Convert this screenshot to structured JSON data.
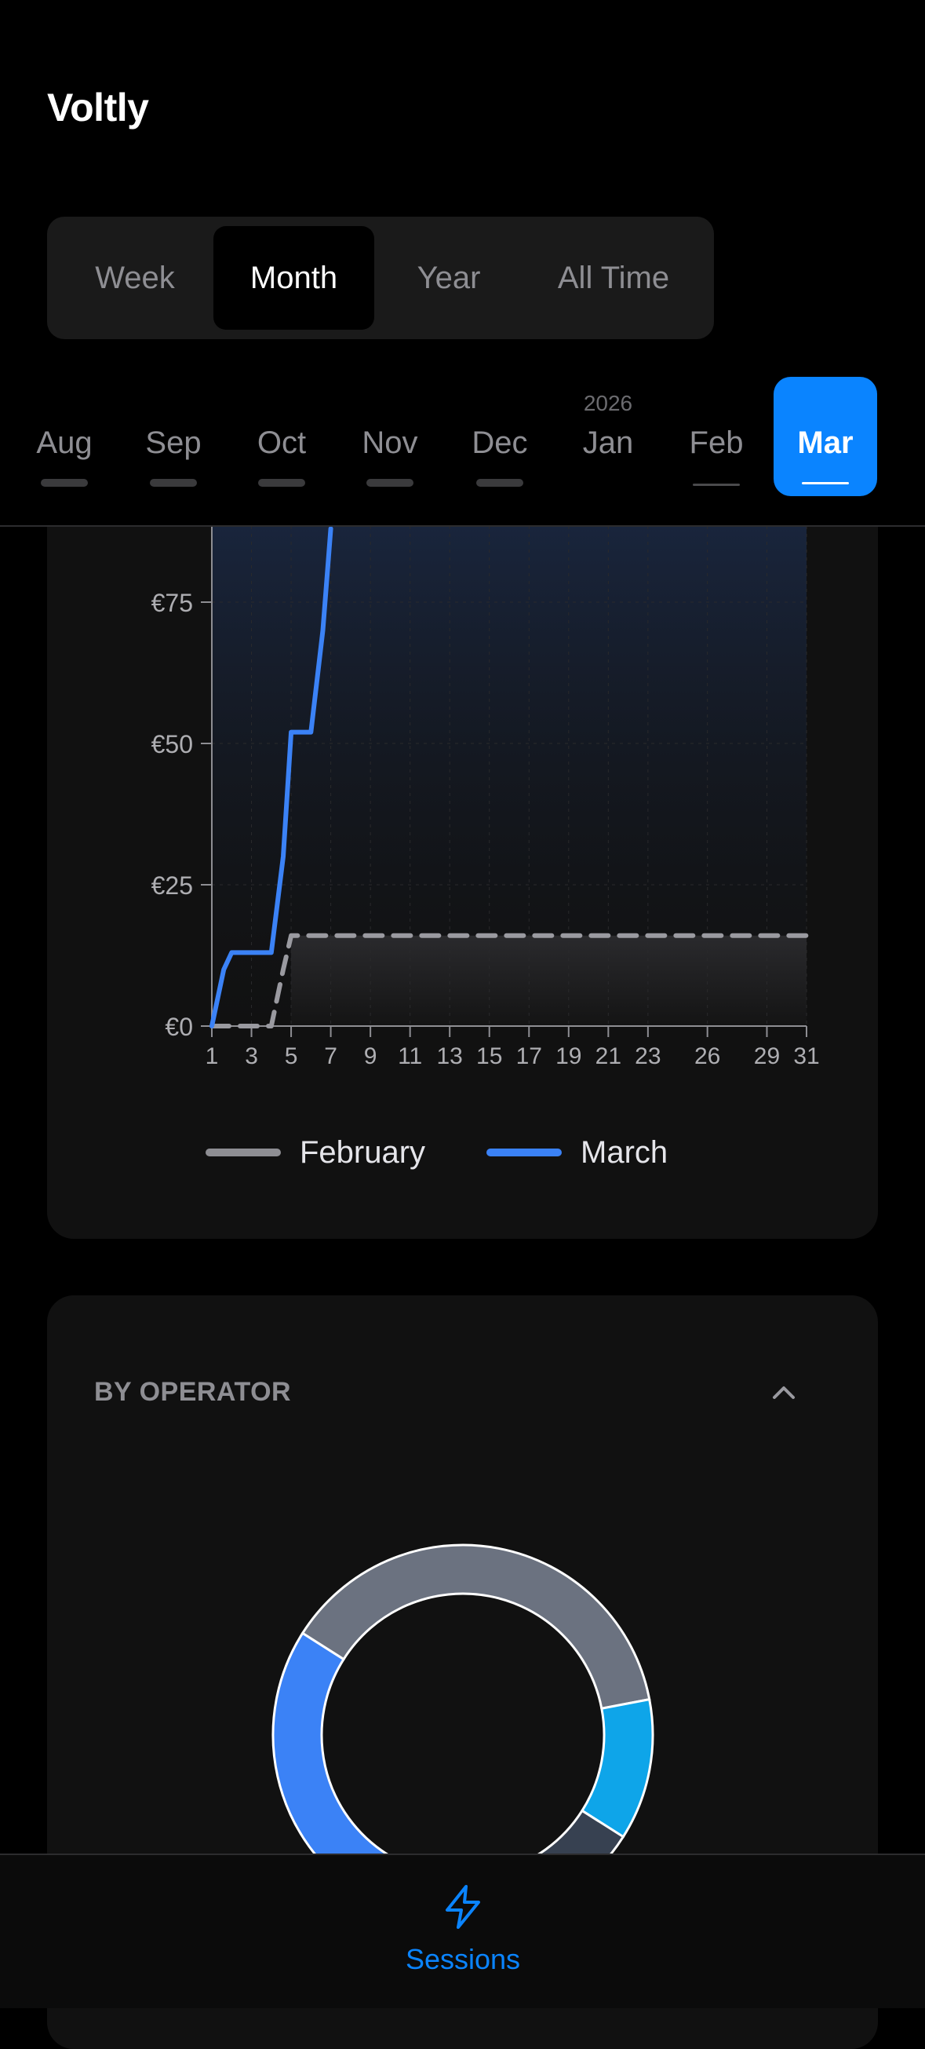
{
  "app": {
    "title": "Voltly"
  },
  "period_tabs": [
    {
      "label": "Week",
      "active": false
    },
    {
      "label": "Month",
      "active": true
    },
    {
      "label": "Year",
      "active": false
    },
    {
      "label": "All Time",
      "active": false
    }
  ],
  "months": [
    {
      "label": "Aug",
      "year": "",
      "has_data": true,
      "active": false
    },
    {
      "label": "Sep",
      "year": "",
      "has_data": true,
      "active": false
    },
    {
      "label": "Oct",
      "year": "",
      "has_data": true,
      "active": false
    },
    {
      "label": "Nov",
      "year": "",
      "has_data": true,
      "active": false
    },
    {
      "label": "Dec",
      "year": "",
      "has_data": true,
      "active": false
    },
    {
      "label": "Jan",
      "year": "2026",
      "has_data": false,
      "active": false
    },
    {
      "label": "Feb",
      "year": "",
      "has_data": false,
      "active": false
    },
    {
      "label": "Mar",
      "year": "",
      "has_data": false,
      "active": true
    }
  ],
  "chart_data": {
    "type": "line",
    "title": "",
    "xlabel": "",
    "ylabel": "",
    "x_ticks": [
      1,
      3,
      5,
      7,
      9,
      11,
      13,
      15,
      17,
      19,
      21,
      23,
      26,
      29,
      31
    ],
    "y_ticks": [
      "€0",
      "€25",
      "€50",
      "€75"
    ],
    "y_tick_values": [
      0,
      25,
      50,
      75
    ],
    "xlim": [
      1,
      31
    ],
    "ylim": [
      0,
      88
    ],
    "grid": true,
    "legend_position": "bottom-center",
    "series": [
      {
        "name": "February",
        "color": "#9a9aa0",
        "style": "dashed",
        "x": [
          1,
          4,
          4.6,
          5,
          31
        ],
        "y": [
          0,
          0,
          10,
          16,
          16
        ]
      },
      {
        "name": "March",
        "color": "#3b82f6",
        "style": "solid",
        "x": [
          1,
          1.6,
          2,
          4,
          4.6,
          5,
          6,
          6.6,
          7
        ],
        "y": [
          0,
          10,
          13,
          13,
          30,
          52,
          52,
          70,
          88
        ]
      }
    ]
  },
  "legend": [
    {
      "name": "February",
      "color": "#8e8e93"
    },
    {
      "name": "March",
      "color": "#3b82f6"
    }
  ],
  "operator_section": {
    "title": "BY OPERATOR",
    "chevron_icon": "chevron-up-icon",
    "donut": [
      {
        "fraction": 0.38,
        "color": "#6b7280"
      },
      {
        "fraction": 0.12,
        "color": "#0ea5e9"
      },
      {
        "fraction": 0.25,
        "color": "#374151"
      },
      {
        "fraction": 0.25,
        "color": "#3b82f6"
      }
    ]
  },
  "tabbar": {
    "sessions_label": "Sessions",
    "icon": "lightning-icon",
    "accent": "#0a84ff"
  }
}
